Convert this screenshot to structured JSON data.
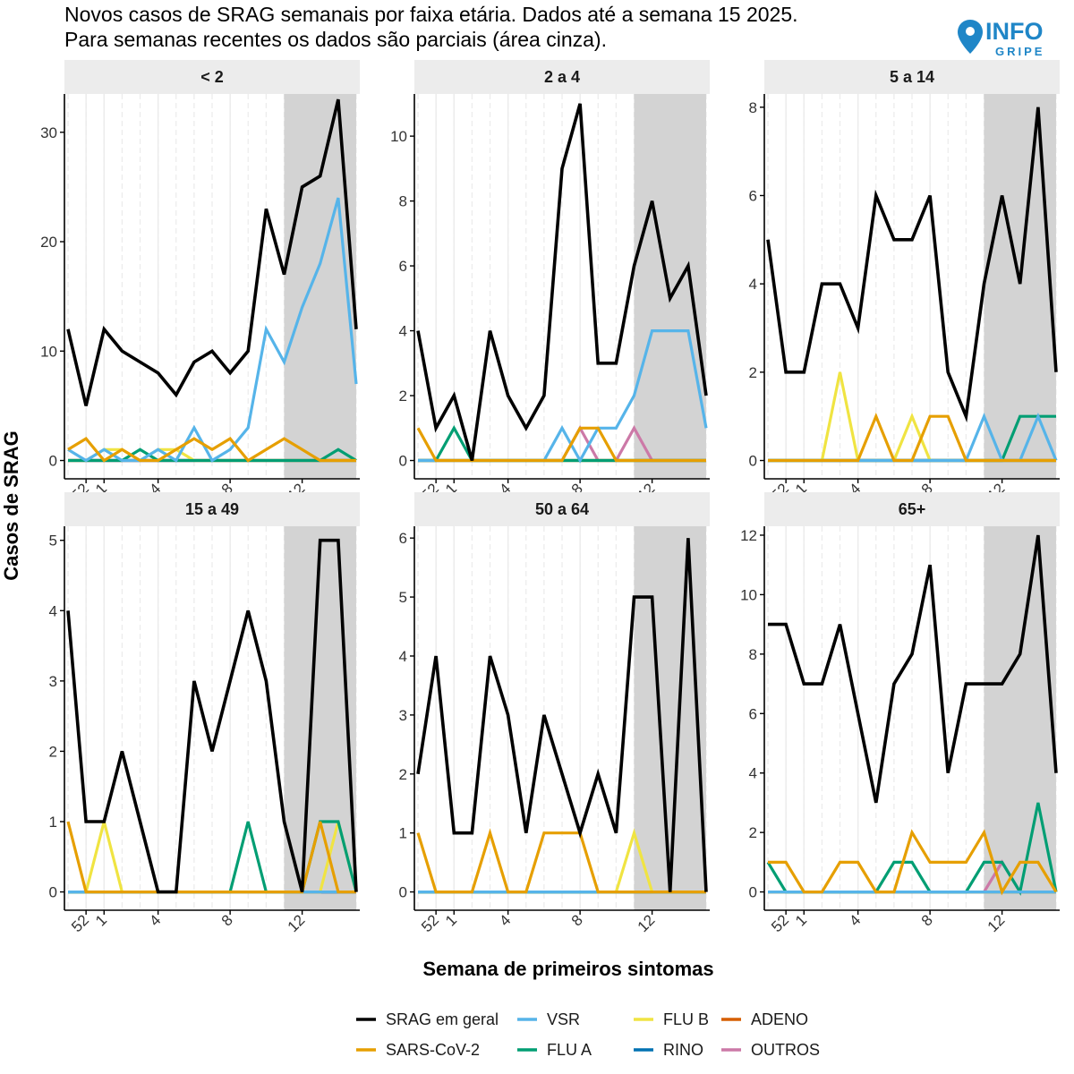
{
  "title_lines": [
    "Novos casos de SRAG semanais por faixa etária. Dados até a semana 15 2025.",
    "Para semanas recentes os dados são parciais (área cinza)."
  ],
  "logo": {
    "word": "INFO",
    "subword": "GRIPE"
  },
  "xlabel": "Semana de primeiros sintomas",
  "ylabel": "Casos de SRAG",
  "colors": {
    "strip_bg": "#ececec",
    "partial_region": "#d3d3d3",
    "grid": "#ebebeb",
    "axis": "#000000"
  },
  "legend": [
    {
      "key": "geral",
      "label": "SRAG em geral",
      "color": "#000000"
    },
    {
      "key": "sars",
      "label": "SARS-CoV-2",
      "color": "#E69F00"
    },
    {
      "key": "vsr",
      "label": "VSR",
      "color": "#56B4E9"
    },
    {
      "key": "flua",
      "label": "FLU A",
      "color": "#009E73"
    },
    {
      "key": "flub",
      "label": "FLU B",
      "color": "#F0E442"
    },
    {
      "key": "rino",
      "label": "RINO",
      "color": "#0072B2"
    },
    {
      "key": "adeno",
      "label": "ADENO",
      "color": "#D55E00"
    },
    {
      "key": "outros",
      "label": "OUTROS",
      "color": "#CC79A7"
    }
  ],
  "chart_data": {
    "type": "line",
    "x_index": [
      0,
      1,
      2,
      3,
      4,
      5,
      6,
      7,
      8,
      9,
      10,
      11,
      12,
      13,
      14,
      15,
      16
    ],
    "x_weeks": [
      "51",
      "52",
      "1",
      "2",
      "3",
      "4",
      "5",
      "6",
      "7",
      "8",
      "9",
      "10",
      "11",
      "12",
      "13",
      "14",
      "15"
    ],
    "x_ticks": [
      {
        "label": "52",
        "idx": 1
      },
      {
        "label": "1",
        "idx": 2
      },
      {
        "label": "4",
        "idx": 5
      },
      {
        "label": "8",
        "idx": 9
      },
      {
        "label": "12",
        "idx": 13
      }
    ],
    "partial_weeks": [
      "11",
      "15"
    ],
    "panels": [
      {
        "name": "< 2",
        "ylim": [
          0,
          33.5
        ],
        "yticks": [
          0,
          10,
          20,
          30
        ],
        "series": {
          "geral": [
            12,
            5,
            12,
            10,
            9,
            8,
            6,
            9,
            10,
            8,
            10,
            23,
            17,
            25,
            26,
            33,
            12
          ],
          "vsr": [
            1,
            0,
            1,
            0,
            0,
            1,
            0,
            3,
            0,
            1,
            3,
            12,
            9,
            14,
            18,
            24,
            7
          ],
          "sars": [
            1,
            2,
            0,
            1,
            0,
            0,
            1,
            2,
            1,
            2,
            0,
            1,
            2,
            1,
            0,
            0,
            0
          ],
          "flua": [
            0,
            0,
            0,
            0,
            1,
            0,
            0,
            0,
            0,
            0,
            0,
            0,
            0,
            0,
            0,
            1,
            0
          ],
          "flub": [
            0,
            0,
            1,
            1,
            0,
            1,
            1,
            0,
            0,
            0,
            0,
            0,
            0,
            0,
            0,
            0,
            0
          ],
          "rino": [
            0,
            0,
            0,
            0,
            0,
            0,
            0,
            0,
            0,
            0,
            0,
            0,
            0,
            0,
            0,
            0,
            0
          ],
          "adeno": [
            0,
            0,
            0,
            0,
            0,
            0,
            0,
            0,
            0,
            0,
            0,
            0,
            0,
            0,
            0,
            0,
            0
          ],
          "outros": [
            0,
            0,
            0,
            0,
            0,
            0,
            0,
            0,
            0,
            0,
            0,
            0,
            0,
            0,
            0,
            0,
            0
          ]
        }
      },
      {
        "name": "2 a 4",
        "ylim": [
          0,
          11.3
        ],
        "yticks": [
          0,
          2,
          4,
          6,
          8,
          10
        ],
        "series": {
          "geral": [
            4,
            1,
            2,
            0,
            4,
            2,
            1,
            2,
            9,
            11,
            3,
            3,
            6,
            8,
            5,
            6,
            2
          ],
          "vsr": [
            0,
            0,
            0,
            0,
            0,
            0,
            0,
            0,
            1,
            0,
            1,
            1,
            2,
            4,
            4,
            4,
            1
          ],
          "sars": [
            1,
            0,
            0,
            0,
            0,
            0,
            0,
            0,
            0,
            1,
            1,
            0,
            0,
            0,
            0,
            0,
            0
          ],
          "flua": [
            0,
            0,
            1,
            0,
            0,
            0,
            0,
            0,
            0,
            0,
            0,
            0,
            0,
            0,
            0,
            0,
            0
          ],
          "flub": [
            0,
            0,
            0,
            0,
            0,
            0,
            0,
            0,
            0,
            0,
            0,
            0,
            0,
            0,
            0,
            0,
            0
          ],
          "rino": [
            0,
            0,
            0,
            0,
            0,
            0,
            0,
            0,
            0,
            0,
            0,
            0,
            0,
            0,
            0,
            0,
            0
          ],
          "adeno": [
            0,
            0,
            0,
            0,
            0,
            0,
            0,
            0,
            0,
            0,
            0,
            0,
            0,
            0,
            0,
            0,
            0
          ],
          "outros": [
            0,
            0,
            0,
            0,
            0,
            0,
            0,
            0,
            0,
            1,
            0,
            0,
            1,
            0,
            0,
            0,
            0
          ]
        }
      },
      {
        "name": "5 a 14",
        "ylim": [
          0,
          8.3
        ],
        "yticks": [
          0,
          2,
          4,
          6,
          8
        ],
        "series": {
          "geral": [
            5,
            2,
            2,
            4,
            4,
            3,
            6,
            5,
            5,
            6,
            2,
            1,
            4,
            6,
            4,
            8,
            2
          ],
          "vsr": [
            0,
            0,
            0,
            0,
            0,
            0,
            0,
            0,
            0,
            0,
            0,
            0,
            1,
            0,
            0,
            1,
            0
          ],
          "sars": [
            0,
            0,
            0,
            0,
            0,
            0,
            1,
            0,
            0,
            1,
            1,
            0,
            0,
            0,
            0,
            0,
            0
          ],
          "flua": [
            0,
            0,
            0,
            0,
            0,
            0,
            0,
            0,
            0,
            0,
            0,
            0,
            0,
            0,
            1,
            1,
            1
          ],
          "flub": [
            0,
            0,
            0,
            0,
            2,
            0,
            0,
            0,
            1,
            0,
            0,
            0,
            0,
            0,
            0,
            0,
            0
          ],
          "rino": [
            0,
            0,
            0,
            0,
            0,
            0,
            0,
            0,
            0,
            0,
            0,
            0,
            0,
            0,
            0,
            0,
            0
          ],
          "adeno": [
            0,
            0,
            0,
            0,
            0,
            0,
            0,
            0,
            0,
            0,
            0,
            0,
            0,
            0,
            0,
            0,
            0
          ],
          "outros": [
            0,
            0,
            0,
            0,
            0,
            0,
            0,
            0,
            0,
            0,
            0,
            0,
            0,
            0,
            0,
            0,
            0
          ]
        }
      },
      {
        "name": "15 a 49",
        "ylim": [
          0,
          5.2
        ],
        "yticks": [
          0,
          1,
          2,
          3,
          4,
          5
        ],
        "series": {
          "geral": [
            4,
            1,
            1,
            2,
            1,
            0,
            0,
            3,
            2,
            3,
            4,
            3,
            1,
            0,
            5,
            5,
            0
          ],
          "vsr": [
            0,
            0,
            0,
            0,
            0,
            0,
            0,
            0,
            0,
            0,
            0,
            0,
            0,
            0,
            0,
            0,
            0
          ],
          "sars": [
            1,
            0,
            0,
            0,
            0,
            0,
            0,
            0,
            0,
            0,
            0,
            0,
            0,
            0,
            1,
            0,
            0
          ],
          "flua": [
            0,
            0,
            0,
            0,
            0,
            0,
            0,
            0,
            0,
            0,
            1,
            0,
            0,
            0,
            1,
            1,
            0
          ],
          "flub": [
            0,
            0,
            1,
            0,
            0,
            0,
            0,
            0,
            0,
            0,
            0,
            0,
            0,
            0,
            0,
            1,
            0
          ],
          "rino": [
            0,
            0,
            0,
            0,
            0,
            0,
            0,
            0,
            0,
            0,
            0,
            0,
            0,
            0,
            0,
            0,
            0
          ],
          "adeno": [
            0,
            0,
            0,
            0,
            0,
            0,
            0,
            0,
            0,
            0,
            0,
            0,
            0,
            0,
            0,
            0,
            0
          ],
          "outros": [
            0,
            0,
            0,
            0,
            0,
            0,
            0,
            0,
            0,
            0,
            0,
            0,
            0,
            0,
            0,
            0,
            0
          ]
        }
      },
      {
        "name": "50 a 64",
        "ylim": [
          0,
          6.2
        ],
        "yticks": [
          0,
          1,
          2,
          3,
          4,
          5,
          6
        ],
        "series": {
          "geral": [
            2,
            4,
            1,
            1,
            4,
            3,
            1,
            3,
            2,
            1,
            2,
            1,
            5,
            5,
            0,
            6,
            0
          ],
          "vsr": [
            0,
            0,
            0,
            0,
            0,
            0,
            0,
            0,
            0,
            0,
            0,
            0,
            0,
            0,
            0,
            0,
            0
          ],
          "sars": [
            1,
            0,
            0,
            0,
            1,
            0,
            0,
            1,
            1,
            1,
            0,
            0,
            0,
            0,
            0,
            0,
            0
          ],
          "flua": [
            0,
            0,
            0,
            0,
            0,
            0,
            0,
            0,
            0,
            0,
            0,
            0,
            0,
            0,
            0,
            0,
            0
          ],
          "flub": [
            0,
            0,
            0,
            0,
            0,
            0,
            0,
            0,
            0,
            0,
            0,
            0,
            1,
            0,
            0,
            0,
            0
          ],
          "rino": [
            0,
            0,
            0,
            0,
            0,
            0,
            0,
            0,
            0,
            0,
            0,
            0,
            0,
            0,
            0,
            0,
            0
          ],
          "adeno": [
            0,
            0,
            0,
            0,
            0,
            0,
            0,
            0,
            0,
            0,
            0,
            0,
            0,
            0,
            0,
            0,
            0
          ],
          "outros": [
            0,
            0,
            0,
            0,
            0,
            0,
            0,
            0,
            0,
            0,
            0,
            0,
            0,
            0,
            0,
            0,
            0
          ]
        }
      },
      {
        "name": "65+",
        "ylim": [
          0,
          12.3
        ],
        "yticks": [
          0,
          2,
          4,
          6,
          8,
          10,
          12
        ],
        "series": {
          "geral": [
            9,
            9,
            7,
            7,
            9,
            6,
            3,
            7,
            8,
            11,
            4,
            7,
            7,
            7,
            8,
            12,
            4
          ],
          "vsr": [
            0,
            0,
            0,
            0,
            0,
            0,
            0,
            0,
            0,
            0,
            0,
            0,
            0,
            0,
            0,
            0,
            0
          ],
          "sars": [
            1,
            1,
            0,
            0,
            1,
            1,
            0,
            0,
            2,
            1,
            1,
            1,
            2,
            0,
            1,
            1,
            0
          ],
          "flua": [
            1,
            0,
            0,
            0,
            0,
            0,
            0,
            1,
            1,
            0,
            0,
            0,
            1,
            1,
            0,
            3,
            0
          ],
          "flub": [
            0,
            0,
            0,
            0,
            0,
            0,
            0,
            0,
            0,
            0,
            0,
            0,
            0,
            0,
            0,
            0,
            0
          ],
          "rino": [
            0,
            0,
            0,
            0,
            0,
            0,
            0,
            0,
            0,
            0,
            0,
            0,
            0,
            0,
            0,
            0,
            0
          ],
          "adeno": [
            0,
            0,
            0,
            0,
            0,
            0,
            0,
            0,
            0,
            0,
            0,
            0,
            0,
            0,
            0,
            0,
            0
          ],
          "outros": [
            0,
            0,
            0,
            0,
            0,
            0,
            0,
            0,
            0,
            0,
            0,
            0,
            0,
            1,
            0,
            0,
            0
          ]
        }
      }
    ]
  }
}
